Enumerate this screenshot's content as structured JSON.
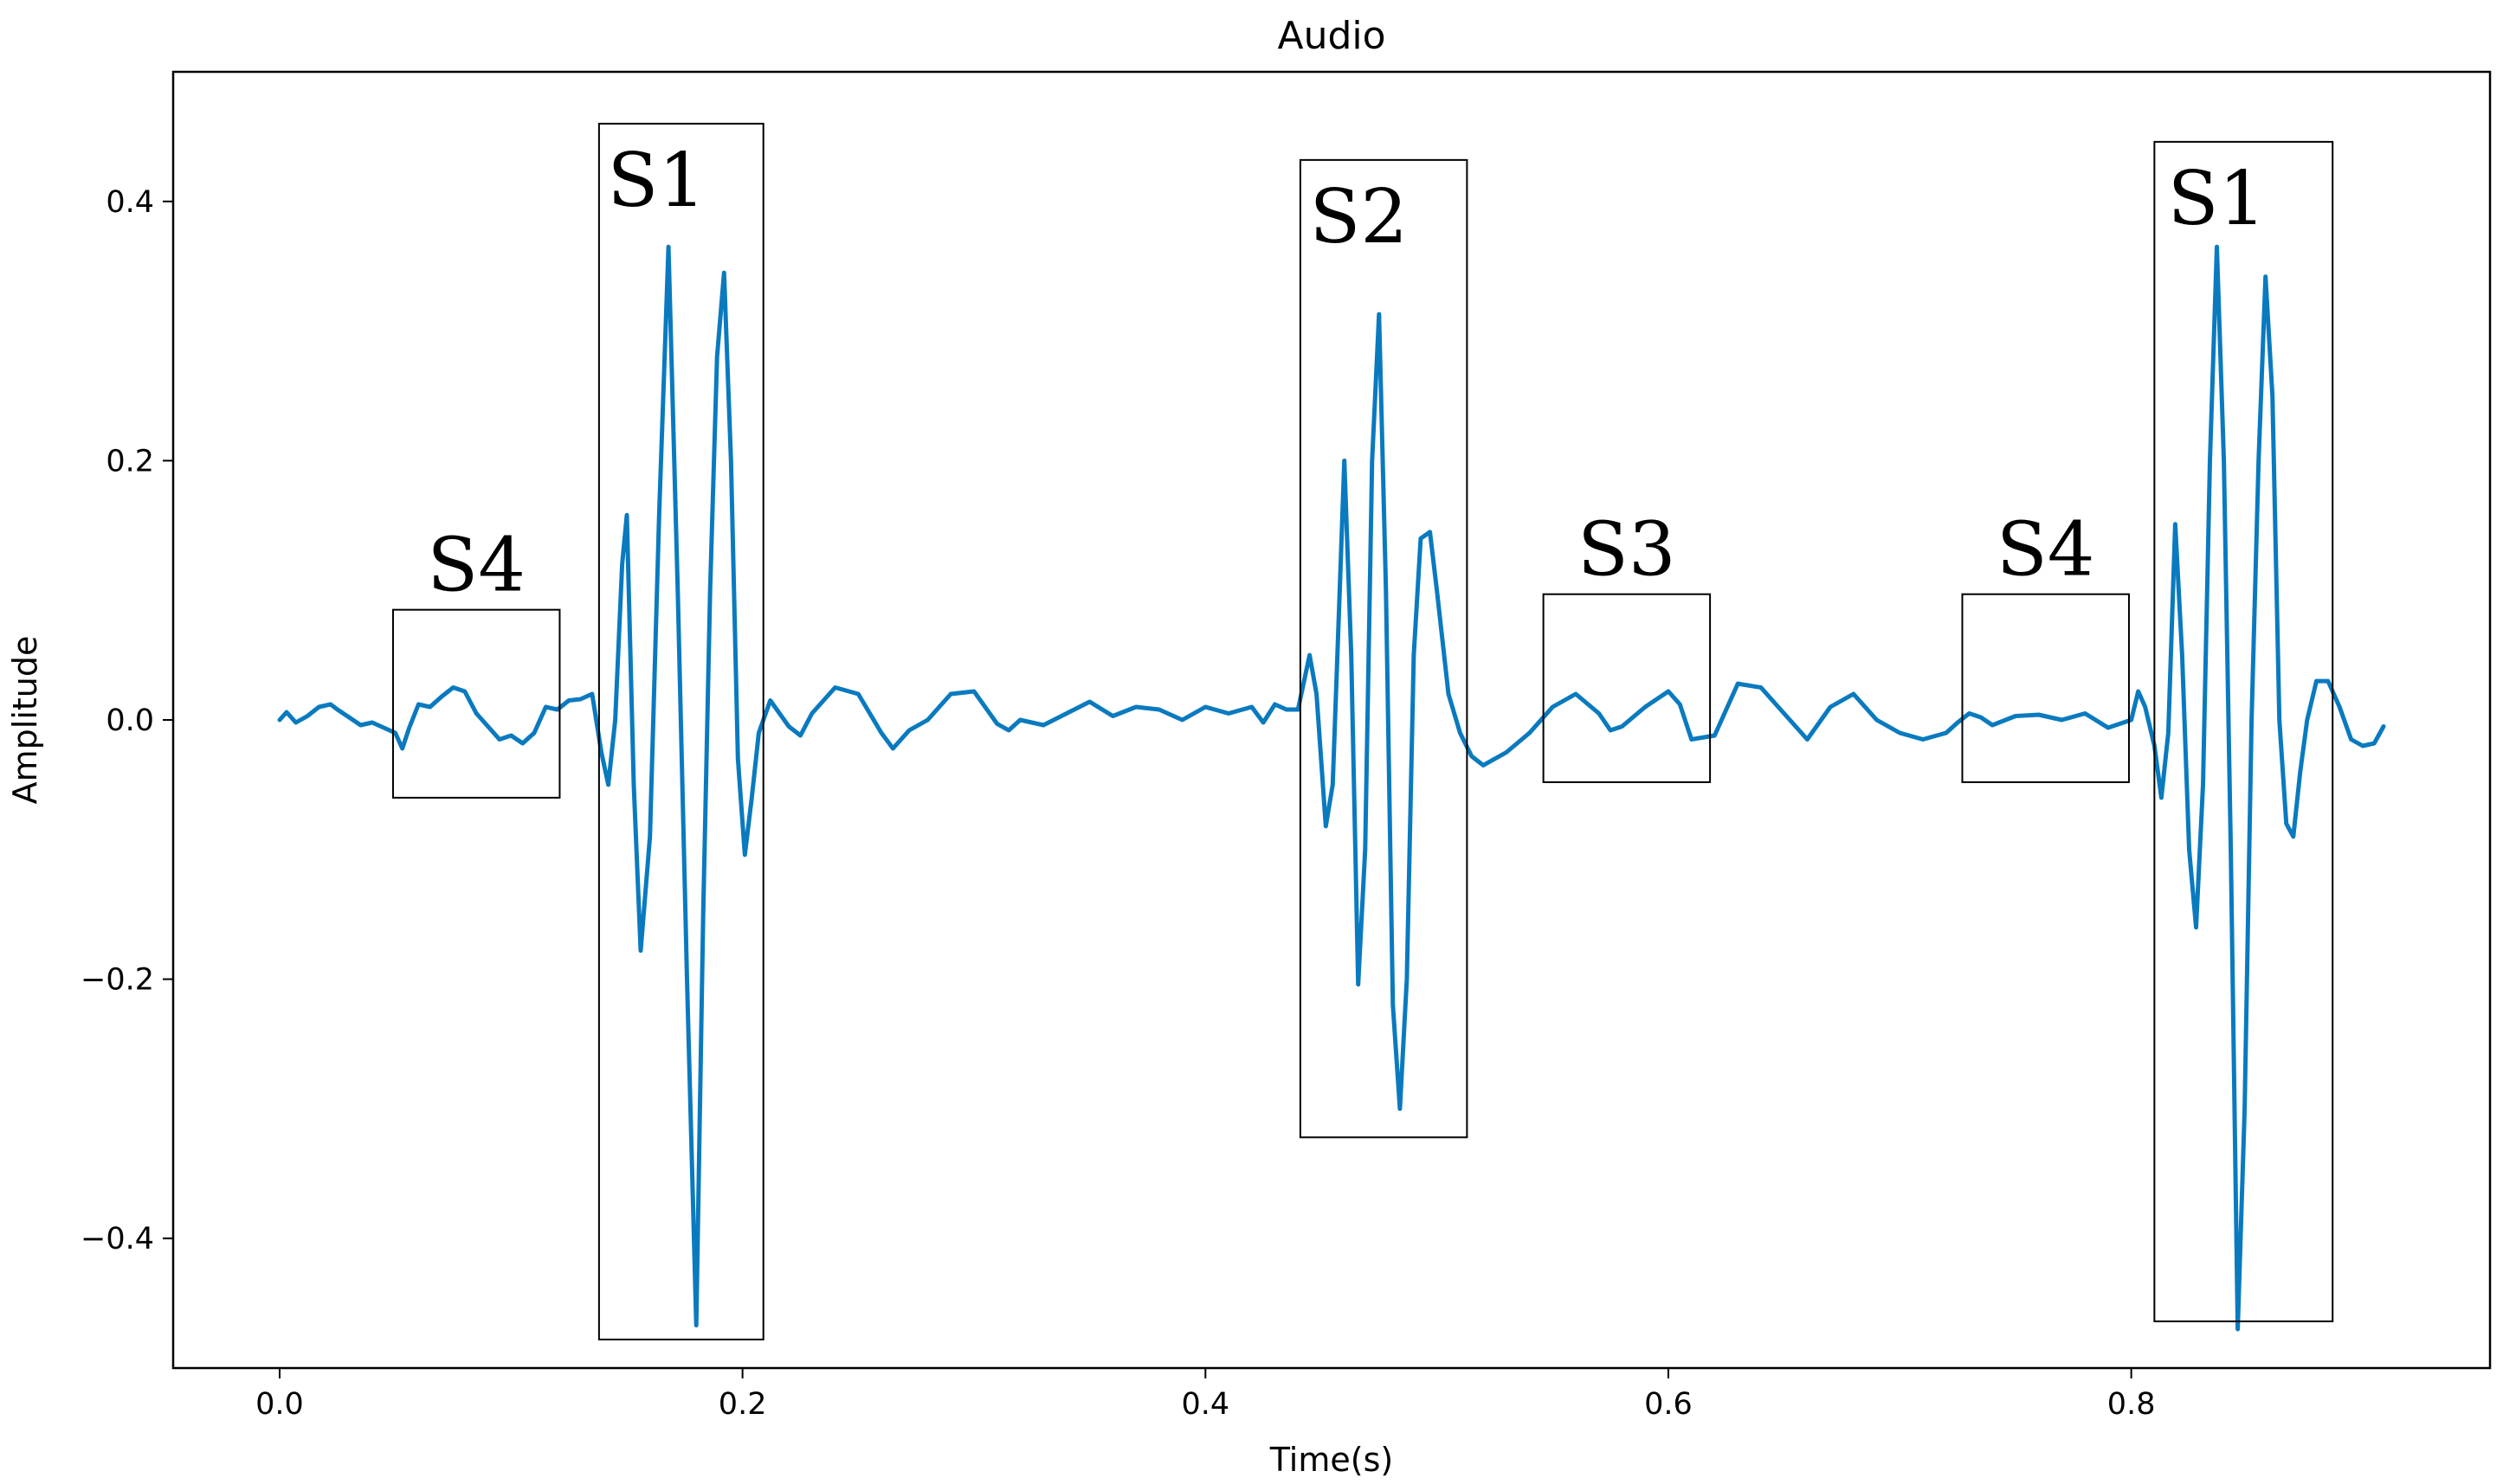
{
  "chart_data": {
    "type": "line",
    "title": "Audio",
    "xlabel": "Time(s)",
    "ylabel": "Amplitude",
    "xlim": [
      -0.046,
      0.955
    ],
    "ylim": [
      -0.5,
      0.5
    ],
    "xticks": [
      0.0,
      0.2,
      0.4,
      0.6,
      0.8
    ],
    "xtick_labels": [
      "0.0",
      "0.2",
      "0.4",
      "0.6",
      "0.8"
    ],
    "yticks": [
      0.4,
      0.2,
      0.0,
      -0.2,
      -0.4
    ],
    "ytick_labels": [
      "0.4",
      "0.2",
      "0.0",
      "−0.2",
      "−0.4"
    ],
    "grid": false,
    "series": [
      {
        "color": "#0a7abf",
        "x": [
          0.0,
          0.003,
          0.007,
          0.012,
          0.017,
          0.022,
          0.025,
          0.03,
          0.035,
          0.04,
          0.045,
          0.05,
          0.053,
          0.056,
          0.06,
          0.065,
          0.07,
          0.075,
          0.08,
          0.085,
          0.09,
          0.095,
          0.1,
          0.105,
          0.11,
          0.115,
          0.12,
          0.125,
          0.13,
          0.135,
          0.139,
          0.142,
          0.145,
          0.148,
          0.15,
          0.153,
          0.156,
          0.16,
          0.164,
          0.168,
          0.172,
          0.176,
          0.18,
          0.183,
          0.186,
          0.189,
          0.192,
          0.195,
          0.198,
          0.201,
          0.204,
          0.207,
          0.212,
          0.22,
          0.225,
          0.23,
          0.24,
          0.25,
          0.26,
          0.265,
          0.272,
          0.28,
          0.29,
          0.3,
          0.31,
          0.315,
          0.32,
          0.33,
          0.34,
          0.35,
          0.36,
          0.37,
          0.38,
          0.39,
          0.4,
          0.41,
          0.42,
          0.425,
          0.43,
          0.435,
          0.44,
          0.445,
          0.448,
          0.452,
          0.455,
          0.458,
          0.46,
          0.463,
          0.466,
          0.469,
          0.472,
          0.475,
          0.478,
          0.481,
          0.484,
          0.487,
          0.49,
          0.493,
          0.497,
          0.5,
          0.505,
          0.51,
          0.515,
          0.52,
          0.525,
          0.53,
          0.54,
          0.55,
          0.56,
          0.57,
          0.575,
          0.58,
          0.59,
          0.6,
          0.605,
          0.61,
          0.62,
          0.63,
          0.64,
          0.65,
          0.66,
          0.67,
          0.68,
          0.69,
          0.7,
          0.71,
          0.72,
          0.725,
          0.73,
          0.735,
          0.74,
          0.75,
          0.76,
          0.77,
          0.78,
          0.79,
          0.8,
          0.803,
          0.806,
          0.81,
          0.813,
          0.816,
          0.819,
          0.822,
          0.825,
          0.828,
          0.831,
          0.834,
          0.837,
          0.84,
          0.843,
          0.846,
          0.849,
          0.852,
          0.855,
          0.858,
          0.861,
          0.864,
          0.867,
          0.87,
          0.873,
          0.876,
          0.88,
          0.885,
          0.89,
          0.895,
          0.9,
          0.905,
          0.909
        ],
        "y": [
          0.0,
          0.006,
          -0.002,
          0.003,
          0.01,
          0.012,
          0.008,
          0.002,
          -0.004,
          -0.002,
          -0.006,
          -0.01,
          -0.022,
          -0.006,
          0.012,
          0.01,
          0.018,
          0.025,
          0.022,
          0.005,
          -0.005,
          -0.015,
          -0.012,
          -0.018,
          -0.01,
          0.01,
          0.008,
          0.015,
          0.016,
          0.02,
          -0.025,
          -0.05,
          0.0,
          0.12,
          0.158,
          -0.05,
          -0.178,
          -0.09,
          0.16,
          0.365,
          0.1,
          -0.2,
          -0.467,
          -0.15,
          0.1,
          0.28,
          0.345,
          0.2,
          -0.03,
          -0.104,
          -0.06,
          -0.01,
          0.015,
          -0.005,
          -0.012,
          0.005,
          0.025,
          0.02,
          -0.01,
          -0.022,
          -0.008,
          0.0,
          0.02,
          0.022,
          -0.003,
          -0.008,
          0.0,
          -0.004,
          0.005,
          0.014,
          0.003,
          0.01,
          0.008,
          0.0,
          0.01,
          0.005,
          0.01,
          -0.002,
          0.012,
          0.008,
          0.008,
          0.05,
          0.02,
          -0.082,
          -0.05,
          0.1,
          0.2,
          0.05,
          -0.204,
          -0.1,
          0.2,
          0.313,
          0.1,
          -0.22,
          -0.3,
          -0.2,
          0.05,
          0.14,
          0.145,
          0.1,
          0.02,
          -0.01,
          -0.028,
          -0.035,
          -0.03,
          -0.025,
          -0.01,
          0.01,
          0.02,
          0.005,
          -0.008,
          -0.005,
          0.01,
          0.022,
          0.012,
          -0.015,
          -0.012,
          0.028,
          0.025,
          0.005,
          -0.015,
          0.01,
          0.02,
          0.0,
          -0.01,
          -0.015,
          -0.01,
          -0.002,
          0.005,
          0.002,
          -0.004,
          0.003,
          0.004,
          0.0,
          0.005,
          -0.006,
          0.0,
          0.022,
          0.01,
          -0.02,
          -0.06,
          -0.01,
          0.151,
          0.05,
          -0.1,
          -0.16,
          -0.05,
          0.2,
          0.365,
          0.2,
          -0.1,
          -0.47,
          -0.3,
          0.0,
          0.2,
          0.342,
          0.25,
          0.0,
          -0.08,
          -0.09,
          -0.04,
          0.0,
          0.03,
          0.03,
          0.01,
          -0.015,
          -0.02,
          -0.018,
          -0.005
        ]
      }
    ],
    "annotations": [
      {
        "label": "S4",
        "x0": 0.049,
        "x1": 0.121,
        "y0": -0.06,
        "y1": 0.085
      },
      {
        "label": "S1",
        "x0": 0.138,
        "x1": 0.209,
        "y0": -0.478,
        "y1": 0.46
      },
      {
        "label": "S2",
        "x0": 0.441,
        "x1": 0.513,
        "y0": -0.322,
        "y1": 0.432
      },
      {
        "label": "S3",
        "x0": 0.546,
        "x1": 0.618,
        "y0": -0.048,
        "y1": 0.097
      },
      {
        "label": "S4",
        "x0": 0.727,
        "x1": 0.799,
        "y0": -0.048,
        "y1": 0.097
      },
      {
        "label": "S1",
        "x0": 0.81,
        "x1": 0.887,
        "y0": -0.464,
        "y1": 0.446
      }
    ]
  }
}
